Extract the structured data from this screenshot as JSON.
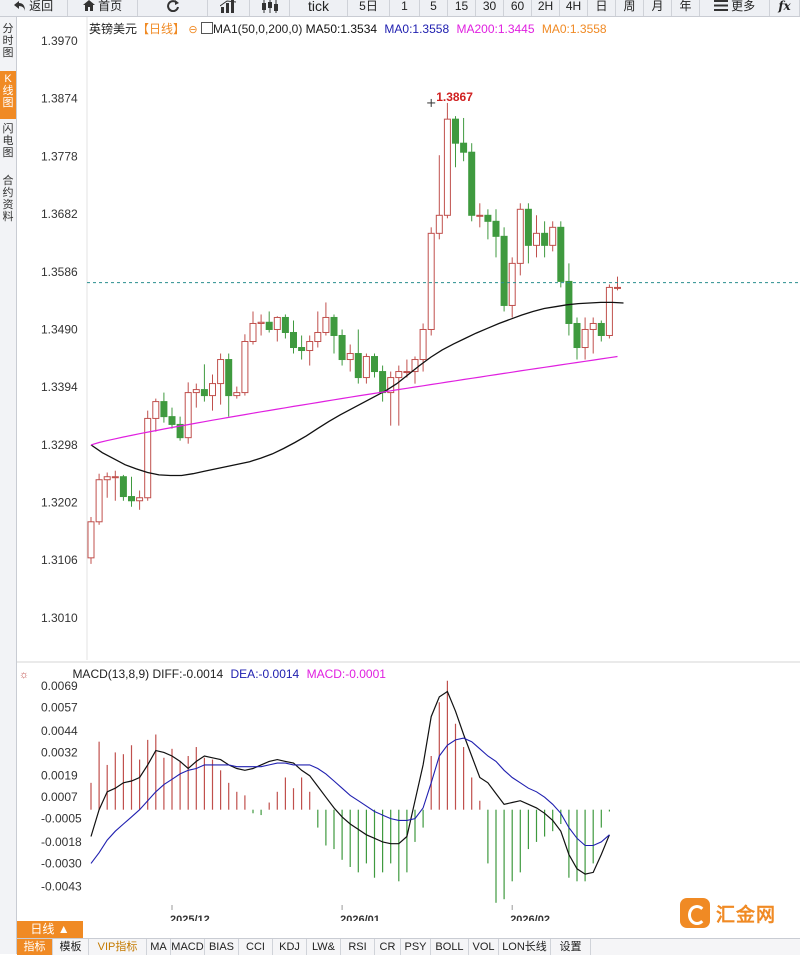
{
  "toolbar": {
    "back": "返回",
    "home": "首页",
    "tick": "tick",
    "periods": [
      "5日",
      "1",
      "5",
      "15",
      "30",
      "60",
      "2H",
      "4H",
      "日",
      "周",
      "月",
      "年"
    ],
    "more": "更多",
    "fx": "fx"
  },
  "sidebar": {
    "items": [
      "分时图",
      "K线图",
      "闪电图",
      "合约资料"
    ],
    "active_index": 1
  },
  "legend": {
    "name": "英镑美元",
    "period": "【日线】",
    "ma_label": "MA1(50,0,200,0)",
    "ma50": "MA50:1.3534",
    "ma0a": "MA0:1.3558",
    "ma200": "MA200:1.3445",
    "ma0b": "MA0:1.3558"
  },
  "macd_legend": {
    "title": "MACD(13,8,9)",
    "diff": "DIFF:-0.0014",
    "dea": "DEA:-0.0014",
    "macd": "MACD:-0.0001"
  },
  "colors": {
    "up": "#c0504d",
    "down": "#3f9a3f",
    "ma50": "#111111",
    "ma200": "#e020e0",
    "diff": "#111111",
    "dea": "#2020b0",
    "current": "#2a8f8f",
    "peak_label": "#d02020",
    "accent": "#f08a24"
  },
  "period_button": "日线 ▲",
  "bottom_tabs": [
    "指标",
    "模板",
    "VIP指标",
    "MA",
    "MACD",
    "BIAS",
    "CCI",
    "KDJ",
    "LW&",
    "RSI",
    "CR",
    "PSY",
    "BOLL",
    "VOL",
    "LON长线",
    "设置"
  ],
  "logo_text": "汇金网",
  "chart_data": {
    "type": "candlestick",
    "title": "英镑美元【日线】",
    "price_axis": {
      "ticks": [
        "1.3970",
        "1.3874",
        "1.3778",
        "1.3682",
        "1.3586",
        "1.3490",
        "1.3394",
        "1.3298",
        "1.3202",
        "1.3106",
        "1.3010"
      ],
      "ylim": [
        1.294,
        1.401
      ]
    },
    "date_labels": [
      {
        "label": "2025/12",
        "index": 10
      },
      {
        "label": "2026/01",
        "index": 31
      },
      {
        "label": "2026/02",
        "index": 52
      }
    ],
    "current_price": 1.3568,
    "peak": {
      "label": "1.3867",
      "index": 42,
      "value": 1.3867
    },
    "candles": [
      [
        1.311,
        1.317,
        1.31,
        1.3178
      ],
      [
        1.317,
        1.324,
        1.3165,
        1.325
      ],
      [
        1.324,
        1.3245,
        1.321,
        1.3252
      ],
      [
        1.3245,
        1.3245,
        1.3205,
        1.3255
      ],
      [
        1.3245,
        1.3212,
        1.3205,
        1.3248
      ],
      [
        1.3212,
        1.3205,
        1.3195,
        1.3245
      ],
      [
        1.3205,
        1.321,
        1.319,
        1.3222
      ],
      [
        1.321,
        1.3342,
        1.3205,
        1.3355
      ],
      [
        1.3342,
        1.337,
        1.332,
        1.3375
      ],
      [
        1.337,
        1.3345,
        1.3335,
        1.3385
      ],
      [
        1.3345,
        1.3332,
        1.3325,
        1.336
      ],
      [
        1.3332,
        1.331,
        1.3305,
        1.3345
      ],
      [
        1.331,
        1.3385,
        1.33,
        1.3402
      ],
      [
        1.3385,
        1.339,
        1.336,
        1.34
      ],
      [
        1.339,
        1.338,
        1.337,
        1.3432
      ],
      [
        1.338,
        1.34,
        1.3355,
        1.3415
      ],
      [
        1.34,
        1.344,
        1.3365,
        1.345
      ],
      [
        1.344,
        1.338,
        1.3345,
        1.345
      ],
      [
        1.338,
        1.3385,
        1.3375,
        1.3395
      ],
      [
        1.3385,
        1.347,
        1.338,
        1.3482
      ],
      [
        1.347,
        1.35,
        1.3465,
        1.352
      ],
      [
        1.35,
        1.3502,
        1.348,
        1.3515
      ],
      [
        1.3502,
        1.349,
        1.3485,
        1.352
      ],
      [
        1.349,
        1.351,
        1.347,
        1.3512
      ],
      [
        1.351,
        1.3485,
        1.3475,
        1.3515
      ],
      [
        1.3485,
        1.346,
        1.345,
        1.3505
      ],
      [
        1.346,
        1.3455,
        1.344,
        1.348
      ],
      [
        1.3455,
        1.347,
        1.343,
        1.348
      ],
      [
        1.347,
        1.3485,
        1.346,
        1.352
      ],
      [
        1.3485,
        1.351,
        1.348,
        1.3535
      ],
      [
        1.351,
        1.348,
        1.345,
        1.3515
      ],
      [
        1.348,
        1.344,
        1.343,
        1.349
      ],
      [
        1.344,
        1.345,
        1.342,
        1.3465
      ],
      [
        1.345,
        1.341,
        1.34,
        1.349
      ],
      [
        1.341,
        1.3445,
        1.34,
        1.345
      ],
      [
        1.3445,
        1.342,
        1.341,
        1.345
      ],
      [
        1.342,
        1.3385,
        1.337,
        1.343
      ],
      [
        1.3385,
        1.341,
        1.333,
        1.342
      ],
      [
        1.341,
        1.342,
        1.333,
        1.343
      ],
      [
        1.342,
        1.342,
        1.341,
        1.344
      ],
      [
        1.342,
        1.344,
        1.34,
        1.3445
      ],
      [
        1.344,
        1.349,
        1.342,
        1.35
      ],
      [
        1.349,
        1.365,
        1.348,
        1.366
      ],
      [
        1.365,
        1.368,
        1.364,
        1.378
      ],
      [
        1.368,
        1.384,
        1.3675,
        1.3867
      ],
      [
        1.384,
        1.38,
        1.376,
        1.3845
      ],
      [
        1.38,
        1.3785,
        1.377,
        1.3842
      ],
      [
        1.3785,
        1.368,
        1.367,
        1.38
      ],
      [
        1.368,
        1.368,
        1.366,
        1.37
      ],
      [
        1.368,
        1.367,
        1.364,
        1.369
      ],
      [
        1.367,
        1.3645,
        1.361,
        1.369
      ],
      [
        1.3645,
        1.353,
        1.352,
        1.366
      ],
      [
        1.353,
        1.36,
        1.351,
        1.361
      ],
      [
        1.36,
        1.369,
        1.358,
        1.37
      ],
      [
        1.369,
        1.363,
        1.36,
        1.37
      ],
      [
        1.363,
        1.365,
        1.361,
        1.368
      ],
      [
        1.365,
        1.363,
        1.361,
        1.367
      ],
      [
        1.363,
        1.366,
        1.362,
        1.367
      ],
      [
        1.366,
        1.357,
        1.356,
        1.367
      ],
      [
        1.357,
        1.35,
        1.348,
        1.36
      ],
      [
        1.35,
        1.346,
        1.344,
        1.351
      ],
      [
        1.346,
        1.349,
        1.344,
        1.351
      ],
      [
        1.349,
        1.35,
        1.345,
        1.351
      ],
      [
        1.35,
        1.348,
        1.347,
        1.3505
      ],
      [
        1.348,
        1.356,
        1.3475,
        1.3565
      ],
      [
        1.356,
        1.356,
        1.3555,
        1.3578
      ]
    ],
    "ma50": [
      1.3298,
      1.3285,
      1.3275,
      1.3265,
      1.3258,
      1.3252,
      1.3248,
      1.3247,
      1.3247,
      1.325,
      1.3254,
      1.3258,
      1.3262,
      1.3266,
      1.327,
      1.3276,
      1.3283,
      1.3292,
      1.3302,
      1.3313,
      1.3325,
      1.3337,
      1.3348,
      1.3358,
      1.3368,
      1.3378,
      1.3388,
      1.34,
      1.3415,
      1.343,
      1.3444,
      1.3456,
      1.3466,
      1.3475,
      1.3484,
      1.3492,
      1.35,
      1.3507,
      1.3514,
      1.352,
      1.3525,
      1.3528,
      1.3531,
      1.3533,
      1.3534,
      1.3535,
      1.3535,
      1.3534
    ],
    "ma50_start_index": 0,
    "ma200": {
      "start": 1.3298,
      "end": 1.3445
    },
    "macd_axis": {
      "ticks": [
        "0.0069",
        "0.0057",
        "0.0044",
        "0.0032",
        "0.0019",
        "0.0007",
        "-0.0005",
        "-0.0018",
        "-0.0030",
        "-0.0043"
      ],
      "ylim": [
        -0.0051,
        0.0073
      ]
    },
    "macd_hist": [
      0.0015,
      0.0038,
      0.0025,
      0.0032,
      0.0031,
      0.0036,
      0.0028,
      0.0039,
      0.0042,
      0.0029,
      0.0034,
      0.0027,
      0.003,
      0.0035,
      0.0029,
      0.0028,
      0.0022,
      0.0015,
      0.001,
      0.0008,
      -0.0002,
      -0.0003,
      0.0004,
      0.001,
      0.0018,
      0.0012,
      0.0018,
      0.001,
      -0.001,
      -0.002,
      -0.0022,
      -0.0028,
      -0.0032,
      -0.0035,
      -0.003,
      -0.0038,
      -0.0035,
      -0.003,
      -0.004,
      -0.0035,
      -0.0018,
      -0.001,
      0.003,
      0.006,
      0.0072,
      0.0048,
      0.0035,
      0.0018,
      0.0005,
      -0.003,
      -0.0052,
      -0.005,
      -0.004,
      -0.0035,
      -0.0022,
      -0.0018,
      -0.0015,
      -0.0012,
      -0.0008,
      -0.0038,
      -0.004,
      -0.004,
      -0.003,
      -0.001,
      -0.0001
    ],
    "macd_diff": [
      -0.0015,
      0.0,
      0.001,
      0.0012,
      0.0015,
      0.0016,
      0.0018,
      0.0025,
      0.0033,
      0.0032,
      0.003,
      0.0027,
      0.0023,
      0.0027,
      0.003,
      0.0029,
      0.0028,
      0.0025,
      0.0023,
      0.0022,
      0.0023,
      0.0025,
      0.0027,
      0.0028,
      0.0027,
      0.0026,
      0.0022,
      0.0019,
      0.0013,
      0.0007,
      0.0001,
      -0.0004,
      -0.0008,
      -0.0011,
      -0.0014,
      -0.0016,
      -0.0018,
      -0.0019,
      -0.0019,
      -0.0015,
      0.0005,
      0.0025,
      0.0052,
      0.0063,
      0.0066,
      0.0055,
      0.0042,
      0.003,
      0.0018,
      0.0015,
      0.0009,
      0.0003,
      0.0004,
      0.0005,
      0.0003,
      0.0001,
      -0.0002,
      -0.0006,
      -0.0012,
      -0.0025,
      -0.0033,
      -0.0036,
      -0.0035,
      -0.0025,
      -0.0014
    ],
    "macd_dea": [
      -0.003,
      -0.0024,
      -0.0017,
      -0.0012,
      -0.0008,
      -0.0004,
      0.0,
      0.0005,
      0.001,
      0.0014,
      0.0017,
      0.002,
      0.0022,
      0.0023,
      0.0025,
      0.0025,
      0.0025,
      0.0025,
      0.0024,
      0.0024,
      0.0024,
      0.0024,
      0.0025,
      0.0026,
      0.0026,
      0.0025,
      0.0025,
      0.0025,
      0.0023,
      0.002,
      0.0016,
      0.0012,
      0.0008,
      0.0005,
      0.0002,
      -0.0001,
      -0.0003,
      -0.0005,
      -0.0006,
      -0.0006,
      -0.0005,
      0.0001,
      0.0015,
      0.003,
      0.0036,
      0.0039,
      0.004,
      0.0038,
      0.0034,
      0.003,
      0.0027,
      0.0022,
      0.0018,
      0.0015,
      0.0012,
      0.001,
      0.0007,
      0.0003,
      -0.0002,
      -0.001,
      -0.0016,
      -0.002,
      -0.002,
      -0.0018,
      -0.0014
    ]
  }
}
